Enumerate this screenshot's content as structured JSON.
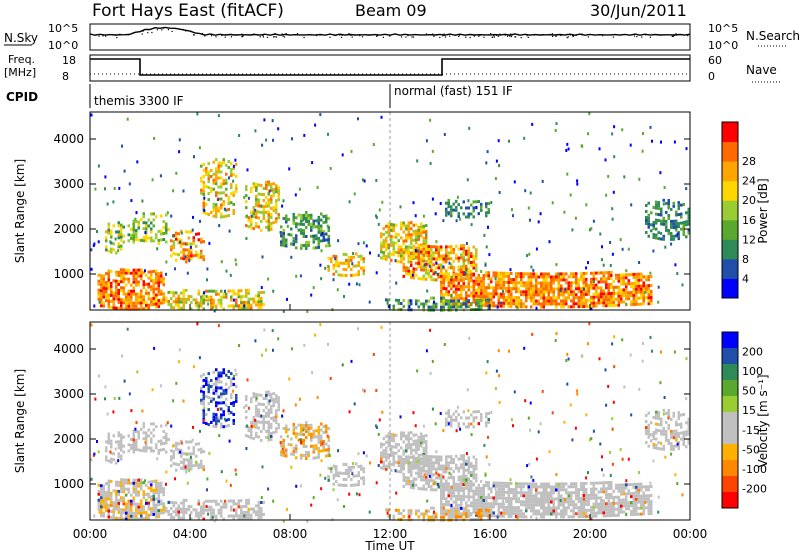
{
  "header": {
    "title": "Fort Hays East (fitACF)",
    "beam": "Beam 09",
    "date": "30/Jun/2011"
  },
  "panels": {
    "sky": {
      "left_label": "N.Sky",
      "right_label": "N.Search",
      "left_ticks": [
        "10^5",
        "10^0"
      ],
      "right_ticks": [
        "10^5",
        "10^0"
      ]
    },
    "freq": {
      "left_label_1": "Freq.",
      "left_label_2": "[MHz]",
      "right_label": "Nave",
      "left_ticks": [
        "18",
        "8"
      ],
      "right_ticks": [
        "60",
        "0"
      ]
    },
    "cpid": {
      "label": "CPID",
      "mode_1": "themis 3300 IF",
      "mode_2": "normal (fast) 151 IF"
    }
  },
  "colors": {
    "power": [
      "#0000ff",
      "#1f4fa8",
      "#2e8b57",
      "#5aa82e",
      "#9acd32",
      "#ffd700",
      "#ffa500",
      "#ff6a00",
      "#ff0000"
    ],
    "velocity": [
      "#0000ff",
      "#1f4fa8",
      "#2e8b57",
      "#5aa82e",
      "#9acd32",
      "#c0c0c0",
      "#c0c0c0",
      "#ffb000",
      "#ff8800",
      "#ff4400",
      "#ff0000"
    ]
  },
  "chart_data": [
    {
      "type": "heatmap",
      "name": "power",
      "ylabel": "Slant Range [km]",
      "yticks": [
        "1000",
        "2000",
        "3000",
        "4000"
      ],
      "ylim": [
        200,
        4600
      ],
      "xlim": [
        "00:00",
        "24:00"
      ],
      "colorbar_label": "Power [dB]",
      "colorbar_ticks": [
        "4",
        "8",
        "12",
        "16",
        "20",
        "24",
        "28"
      ]
    },
    {
      "type": "heatmap",
      "name": "velocity",
      "ylabel": "Slant Range [km]",
      "yticks": [
        "1000",
        "2000",
        "3000",
        "4000"
      ],
      "ylim": [
        200,
        4600
      ],
      "xlim": [
        "00:00",
        "24:00"
      ],
      "colorbar_label": "Velocity [m s⁻¹]",
      "colorbar_ticks": [
        "200",
        "100",
        "50",
        "15",
        "-15",
        "-50",
        "-100",
        "-200"
      ]
    }
  ],
  "x_axis": {
    "label": "Time UT",
    "ticks": [
      "00:00",
      "04:00",
      "08:00",
      "12:00",
      "16:00",
      "20:00",
      "00:00"
    ]
  }
}
